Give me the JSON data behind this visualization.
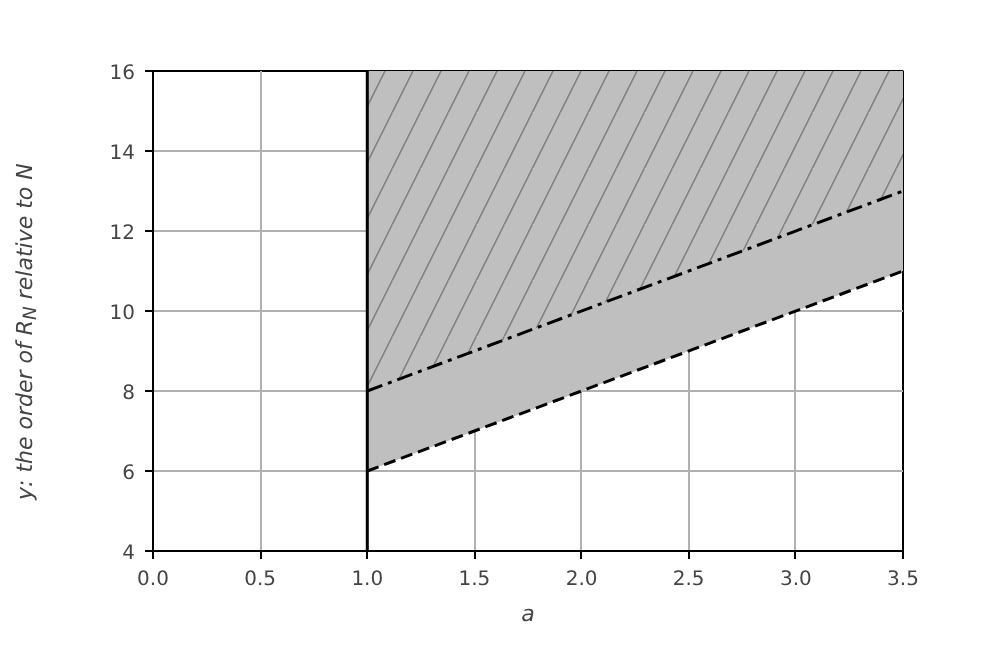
{
  "chart_data": {
    "type": "line",
    "xlabel": "a",
    "ylabel": "y: the order of R$_{N}$ relative to N",
    "xlim": [
      0,
      3.5
    ],
    "ylim": [
      4,
      16
    ],
    "xticks": [
      {
        "value": 0,
        "label": "0.0"
      },
      {
        "value": 0.5,
        "label": "0.5"
      },
      {
        "value": 1,
        "label": "1.0"
      },
      {
        "value": 1.5,
        "label": "1.5"
      },
      {
        "value": 2,
        "label": "2.0"
      },
      {
        "value": 2.5,
        "label": "2.5"
      },
      {
        "value": 3,
        "label": "3.0"
      },
      {
        "value": 3.5,
        "label": "3.5"
      }
    ],
    "yticks": [
      4,
      6,
      8,
      10,
      12,
      14,
      16
    ],
    "grid": true,
    "ref_lines": [
      {
        "axis": "x",
        "value": 1,
        "color": "#000000",
        "line_style": "solid"
      }
    ],
    "x": [
      1,
      3.5
    ],
    "series": [
      {
        "color": "#000000",
        "values": [
          6,
          11
        ],
        "lower": [
          6,
          11
        ],
        "upper": [
          16,
          16
        ],
        "line_style": "dashed"
      },
      {
        "color": "#000000",
        "values": [
          8,
          13
        ],
        "lower": [
          8,
          13
        ],
        "upper": [
          16,
          16
        ],
        "line_style": "dashdot"
      }
    ]
  }
}
